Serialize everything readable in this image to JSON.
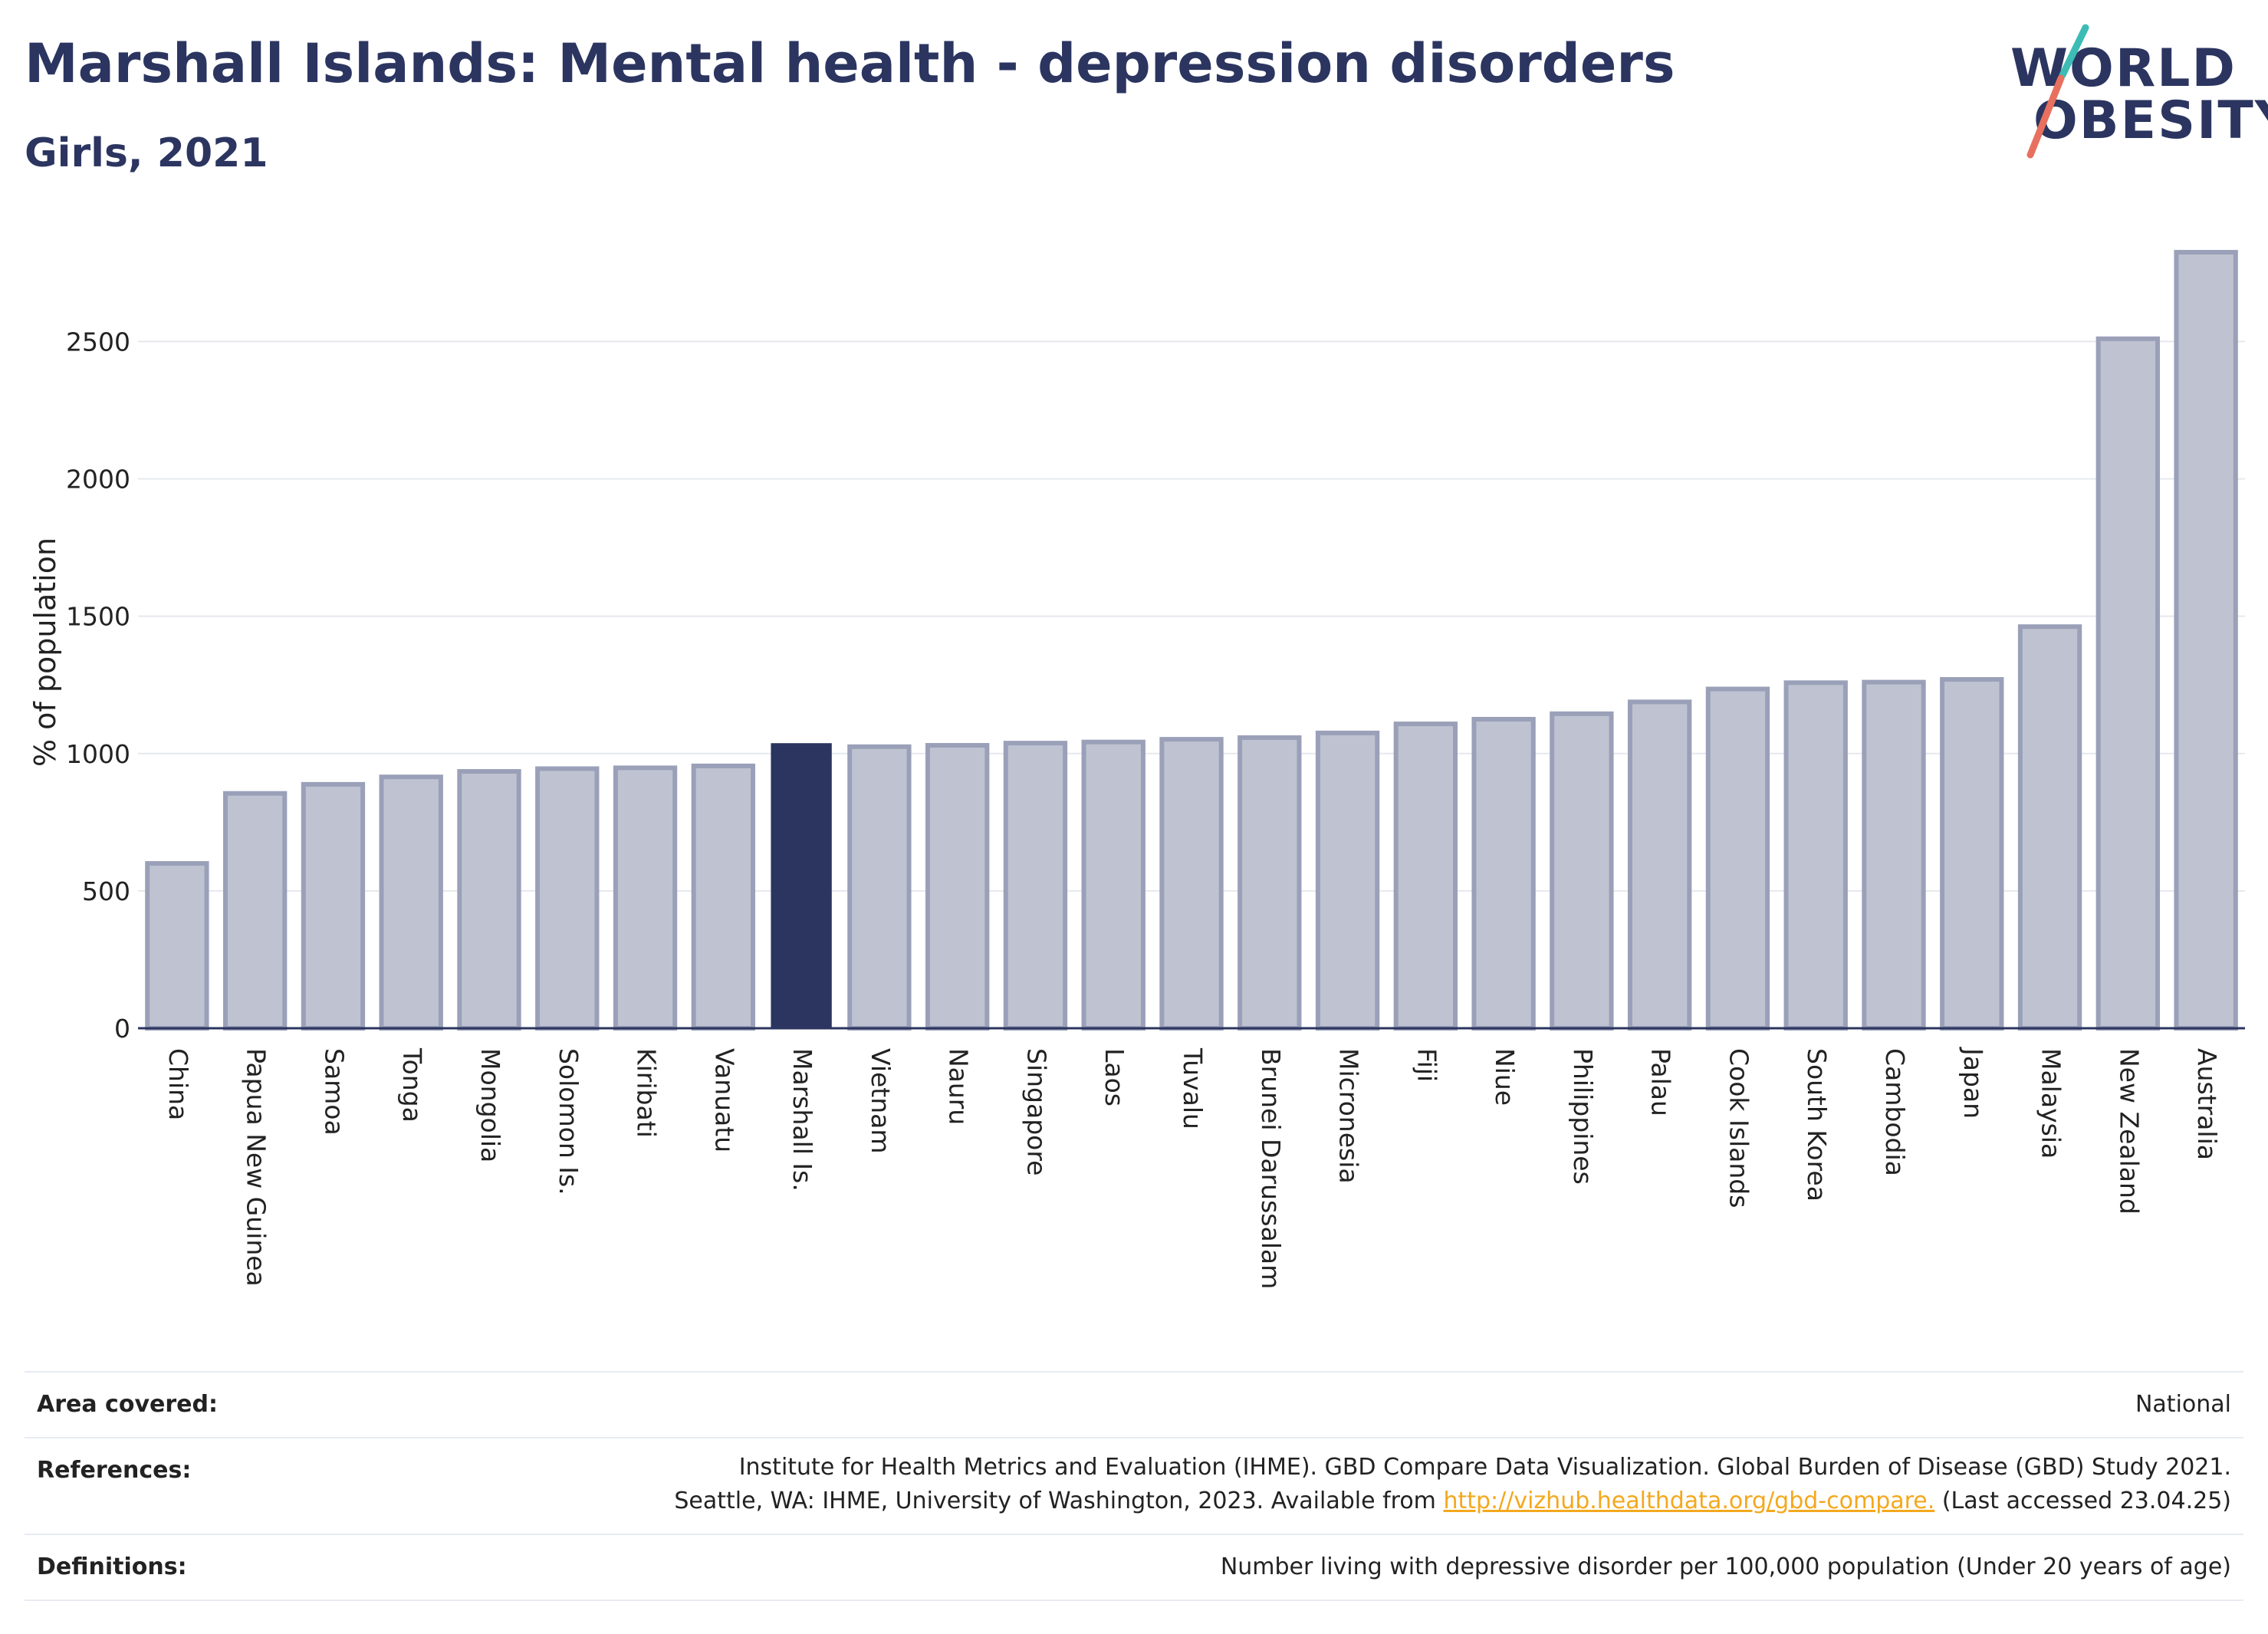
{
  "header": {
    "title": "Marshall Islands: Mental health - depression disorders",
    "subtitle": "Girls, 2021"
  },
  "logo": {
    "line1": "WORLD",
    "line2": "OBESITY",
    "slash_colors": [
      "#3cbcb4",
      "#e8705f"
    ]
  },
  "colors": {
    "bar": "#bfc3d1",
    "bar_border": "#9aa0b8",
    "highlight": "#2b3560",
    "grid": "#e6e8ef",
    "text": "#2b3560",
    "link": "#f4a81d"
  },
  "chart_data": {
    "type": "bar",
    "title": "Marshall Islands: Mental health - depression disorders",
    "subtitle": "Girls, 2021",
    "ylabel": "% of population",
    "xlabel": "",
    "ylim": [
      0,
      2850
    ],
    "yticks": [
      0,
      500,
      1000,
      1500,
      2000,
      2500
    ],
    "grid": true,
    "highlight": "Marshall Is.",
    "categories": [
      "China",
      "Papua New Guinea",
      "Samoa",
      "Tonga",
      "Mongolia",
      "Solomon Is.",
      "Kiribati",
      "Vanuatu",
      "Marshall Is.",
      "Vietnam",
      "Nauru",
      "Singapore",
      "Laos",
      "Tuvalu",
      "Brunei Darussalam",
      "Micronesia",
      "Fiji",
      "Niue",
      "Philippines",
      "Palau",
      "Cook Islands",
      "South Korea",
      "Cambodia",
      "Japan",
      "Malaysia",
      "New Zealand",
      "Australia"
    ],
    "values": [
      600,
      855,
      888,
      915,
      935,
      945,
      948,
      955,
      1035,
      1025,
      1030,
      1038,
      1042,
      1052,
      1058,
      1075,
      1108,
      1125,
      1145,
      1188,
      1235,
      1258,
      1260,
      1270,
      1462,
      2510,
      2825
    ]
  },
  "info": {
    "area_label": "Area covered:",
    "area_value": "National",
    "references_label": "References:",
    "references_line1": "Institute for Health Metrics and Evaluation (IHME). GBD Compare Data Visualization. Global Burden of Disease (GBD) Study 2021.",
    "references_line2_pre": "Seattle, WA: IHME, University of Washington, 2023. Available from ",
    "references_link": "http://vizhub.healthdata.org/gbd-compare.",
    "references_line2_post": " (Last accessed 23.04.25)",
    "definitions_label": "Definitions:",
    "definitions_value": "Number living with depressive disorder per 100,000 population (Under 20 years of age)"
  }
}
